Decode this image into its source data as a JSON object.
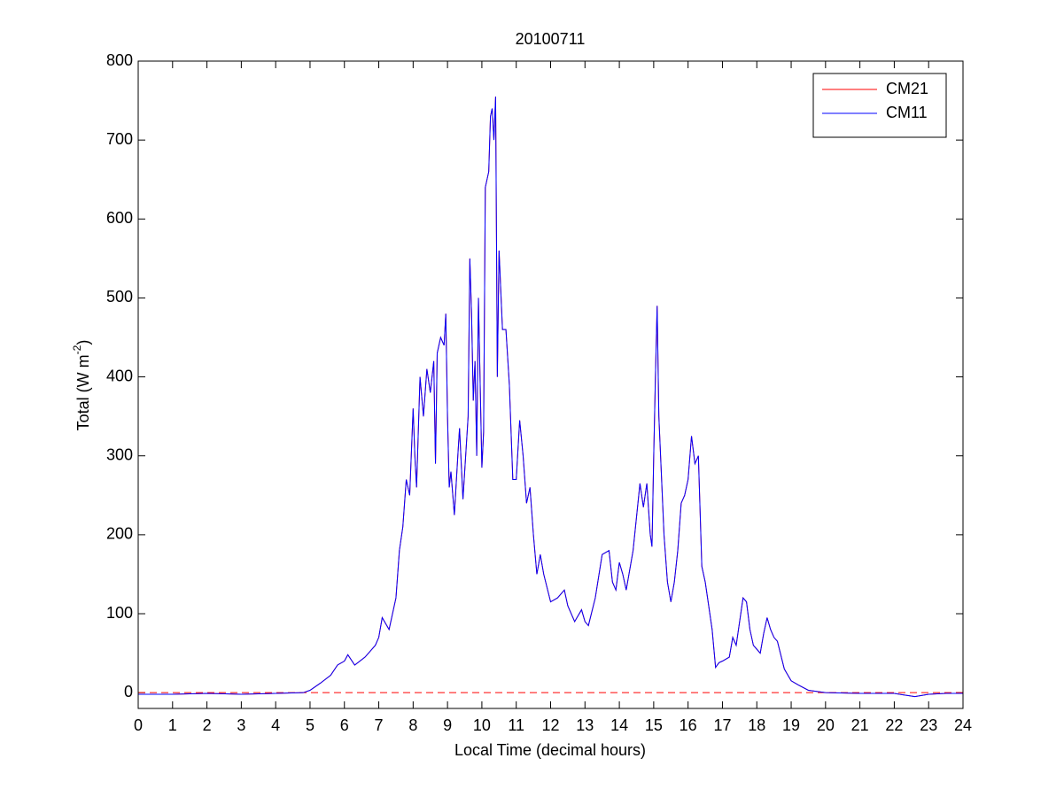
{
  "chart_data": {
    "type": "line",
    "title": "20100711",
    "xlabel": "Local Time (decimal hours)",
    "ylabel": {
      "text": "Total (W m",
      "superscript": "-2",
      "suffix": ")"
    },
    "x": [
      0,
      1,
      2,
      3,
      4,
      4.8,
      5,
      5.3,
      5.6,
      5.8,
      6,
      6.1,
      6.3,
      6.6,
      6.9,
      7,
      7.1,
      7.3,
      7.5,
      7.6,
      7.7,
      7.8,
      7.9,
      8,
      8.05,
      8.1,
      8.2,
      8.3,
      8.4,
      8.5,
      8.6,
      8.65,
      8.7,
      8.8,
      8.9,
      8.95,
      9,
      9.05,
      9.1,
      9.2,
      9.3,
      9.35,
      9.45,
      9.6,
      9.65,
      9.7,
      9.75,
      9.8,
      9.85,
      9.9,
      10,
      10.05,
      10.1,
      10.2,
      10.25,
      10.3,
      10.35,
      10.4,
      10.45,
      10.5,
      10.6,
      10.7,
      10.8,
      10.9,
      11,
      11.1,
      11.2,
      11.3,
      11.4,
      11.5,
      11.6,
      11.7,
      11.8,
      12,
      12.2,
      12.4,
      12.5,
      12.7,
      12.9,
      13,
      13.1,
      13.3,
      13.5,
      13.7,
      13.8,
      13.9,
      14,
      14.1,
      14.2,
      14.4,
      14.6,
      14.7,
      14.8,
      14.9,
      14.95,
      15,
      15.05,
      15.1,
      15.15,
      15.3,
      15.4,
      15.5,
      15.6,
      15.7,
      15.8,
      15.9,
      16,
      16.1,
      16.2,
      16.3,
      16.4,
      16.5,
      16.7,
      16.8,
      16.9,
      17,
      17.2,
      17.3,
      17.4,
      17.6,
      17.7,
      17.8,
      17.9,
      18,
      18.1,
      18.2,
      18.3,
      18.4,
      18.5,
      18.6,
      18.8,
      19,
      19.2,
      19.5,
      20,
      21,
      22,
      22.3,
      22.6,
      23,
      23.5,
      24
    ],
    "series": [
      {
        "name": "CM21",
        "color": "#ff0000",
        "values": [
          -2,
          -2,
          -1,
          -2,
          -1,
          0,
          3,
          12,
          22,
          35,
          40,
          48,
          35,
          45,
          60,
          70,
          95,
          80,
          120,
          180,
          210,
          270,
          250,
          360,
          300,
          260,
          400,
          350,
          410,
          380,
          420,
          290,
          430,
          450,
          440,
          480,
          350,
          260,
          280,
          225,
          300,
          335,
          245,
          350,
          550,
          480,
          370,
          420,
          300,
          500,
          285,
          330,
          640,
          660,
          730,
          740,
          700,
          755,
          400,
          560,
          460,
          460,
          390,
          270,
          270,
          345,
          300,
          240,
          260,
          200,
          150,
          175,
          150,
          115,
          120,
          130,
          110,
          90,
          105,
          90,
          85,
          120,
          175,
          180,
          140,
          130,
          165,
          150,
          130,
          180,
          265,
          235,
          265,
          200,
          185,
          300,
          400,
          490,
          350,
          200,
          140,
          115,
          140,
          180,
          240,
          250,
          270,
          325,
          290,
          300,
          160,
          140,
          80,
          32,
          38,
          40,
          45,
          70,
          60,
          120,
          115,
          80,
          60,
          55,
          50,
          75,
          95,
          80,
          70,
          65,
          30,
          15,
          10,
          3,
          0,
          -1,
          -1,
          -3,
          -5,
          -2,
          -1,
          -1
        ]
      },
      {
        "name": "CM11",
        "color": "#0000ff",
        "values": [
          -2,
          -2,
          -1,
          -2,
          -1,
          0,
          3,
          12,
          22,
          35,
          40,
          48,
          35,
          45,
          60,
          70,
          95,
          80,
          120,
          180,
          210,
          270,
          250,
          360,
          300,
          260,
          400,
          350,
          410,
          380,
          420,
          290,
          430,
          450,
          440,
          480,
          350,
          260,
          280,
          225,
          300,
          335,
          245,
          350,
          550,
          480,
          370,
          420,
          300,
          500,
          285,
          330,
          640,
          660,
          730,
          740,
          700,
          755,
          400,
          560,
          460,
          460,
          390,
          270,
          270,
          345,
          300,
          240,
          260,
          200,
          150,
          175,
          150,
          115,
          120,
          130,
          110,
          90,
          105,
          90,
          85,
          120,
          175,
          180,
          140,
          130,
          165,
          150,
          130,
          180,
          265,
          235,
          265,
          200,
          185,
          300,
          400,
          490,
          350,
          200,
          140,
          115,
          140,
          180,
          240,
          250,
          270,
          325,
          290,
          300,
          160,
          140,
          80,
          32,
          38,
          40,
          45,
          70,
          60,
          120,
          115,
          80,
          60,
          55,
          50,
          75,
          95,
          80,
          70,
          65,
          30,
          15,
          10,
          3,
          0,
          -1,
          -1,
          -3,
          -5,
          -2,
          -1,
          -1
        ]
      }
    ],
    "xlim": [
      0,
      24
    ],
    "xticks": [
      0,
      1,
      2,
      3,
      4,
      5,
      6,
      7,
      8,
      9,
      10,
      11,
      12,
      13,
      14,
      15,
      16,
      17,
      18,
      19,
      20,
      21,
      22,
      23,
      24
    ],
    "ylim": [
      -20,
      800
    ],
    "yticks": [
      0,
      100,
      200,
      300,
      400,
      500,
      600,
      700,
      800
    ],
    "reference_line": {
      "value": 0,
      "color": "#ff0000",
      "dashed": true
    },
    "legend": "northeast",
    "grid": false
  }
}
